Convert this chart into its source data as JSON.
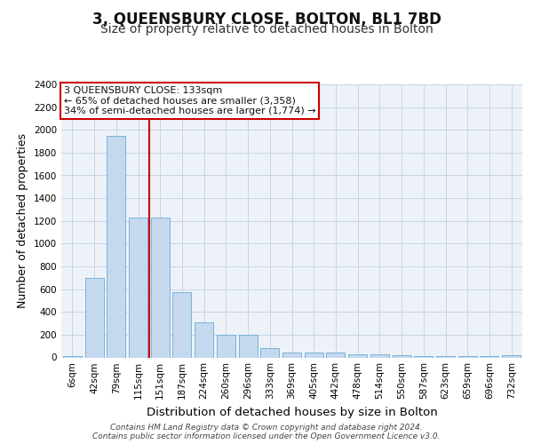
{
  "title": "3, QUEENSBURY CLOSE, BOLTON, BL1 7BD",
  "subtitle": "Size of property relative to detached houses in Bolton",
  "xlabel": "Distribution of detached houses by size in Bolton",
  "ylabel": "Number of detached properties",
  "categories": [
    "6sqm",
    "42sqm",
    "79sqm",
    "115sqm",
    "151sqm",
    "187sqm",
    "224sqm",
    "260sqm",
    "296sqm",
    "333sqm",
    "369sqm",
    "405sqm",
    "442sqm",
    "478sqm",
    "514sqm",
    "550sqm",
    "587sqm",
    "623sqm",
    "659sqm",
    "696sqm",
    "732sqm"
  ],
  "values": [
    15,
    700,
    1950,
    1230,
    1230,
    570,
    310,
    200,
    200,
    85,
    45,
    40,
    40,
    30,
    30,
    20,
    15,
    10,
    10,
    10,
    20
  ],
  "bar_color": "#c5d9ee",
  "bar_edge_color": "#6aaad4",
  "vline_index": 3.5,
  "vline_color": "#cc0000",
  "annotation_text": "3 QUEENSBURY CLOSE: 133sqm\n← 65% of detached houses are smaller (3,358)\n34% of semi-detached houses are larger (1,774) →",
  "annotation_box_facecolor": "#ffffff",
  "annotation_box_edgecolor": "#cc0000",
  "ylim": [
    0,
    2400
  ],
  "yticks": [
    0,
    200,
    400,
    600,
    800,
    1000,
    1200,
    1400,
    1600,
    1800,
    2000,
    2200,
    2400
  ],
  "footer_line1": "Contains HM Land Registry data © Crown copyright and database right 2024.",
  "footer_line2": "Contains public sector information licensed under the Open Government Licence v3.0.",
  "plot_bg_color": "#edf2f9",
  "grid_color": "#c8d4e3",
  "title_fontsize": 12,
  "subtitle_fontsize": 10,
  "xlabel_fontsize": 9.5,
  "ylabel_fontsize": 9,
  "tick_fontsize": 7.5,
  "annot_fontsize": 8,
  "footer_fontsize": 6.5
}
